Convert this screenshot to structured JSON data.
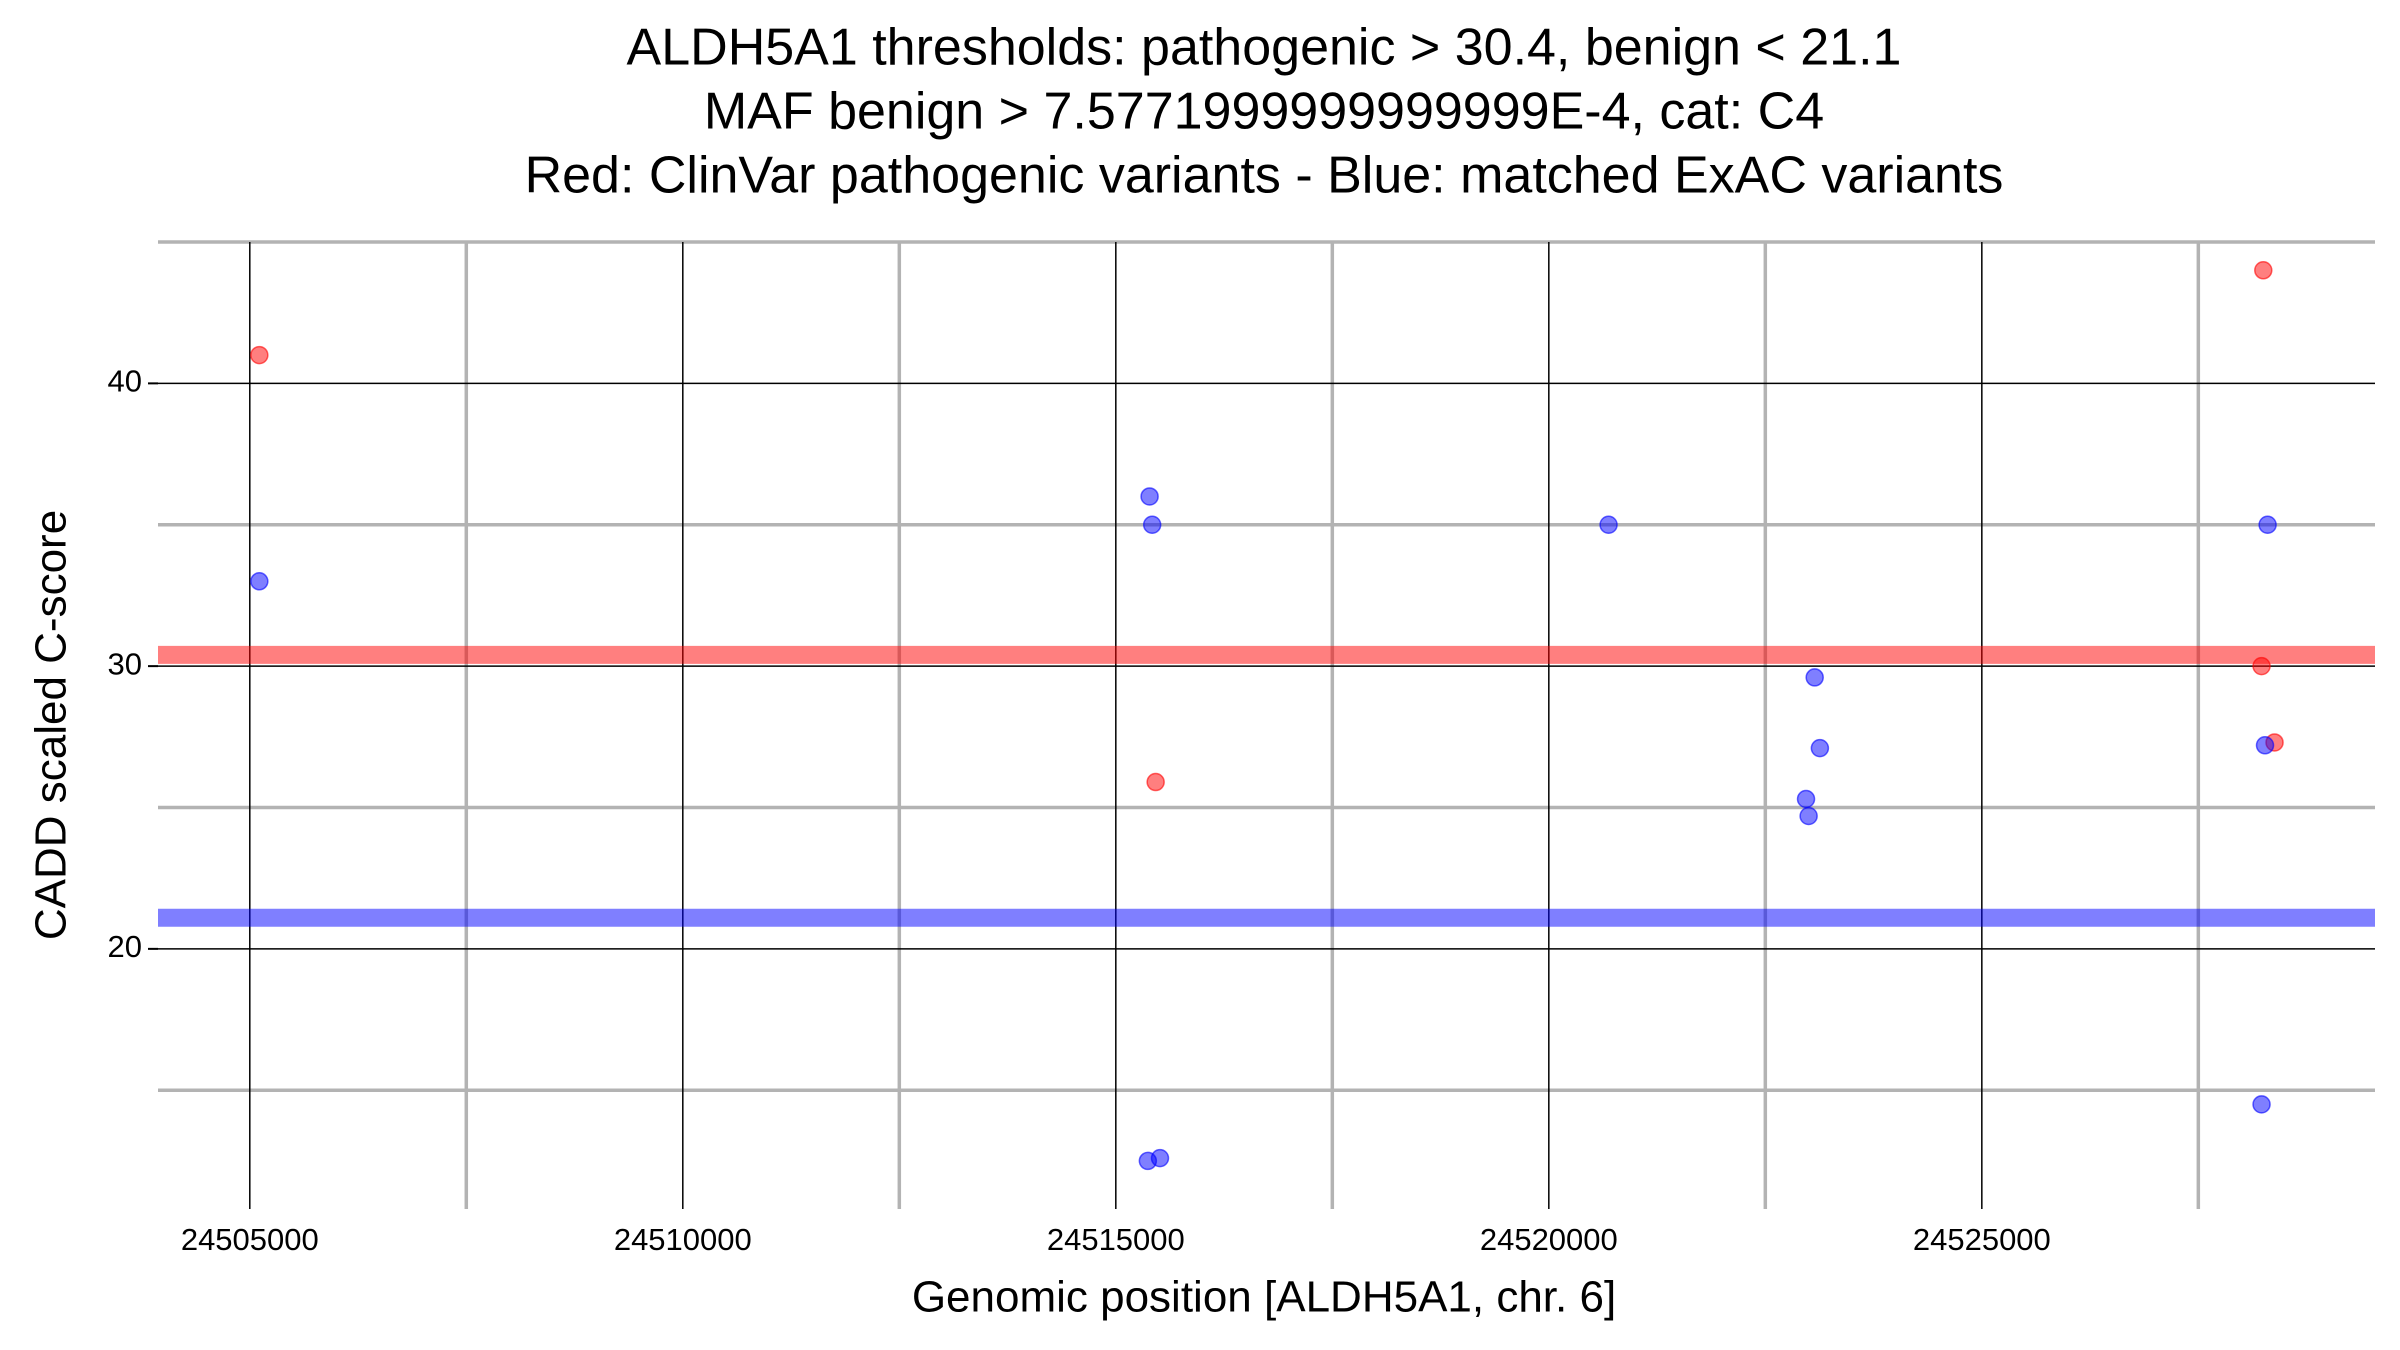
{
  "chart_data": {
    "type": "scatter",
    "title": [
      "ALDH5A1 thresholds: pathogenic > 30.4, benign < 21.1",
      "MAF benign > 7.5771999999999999E-4, cat: C4",
      "Red: ClinVar pathogenic variants - Blue: matched ExAC variants"
    ],
    "xlabel": "Genomic position [ALDH5A1, chr. 6]",
    "ylabel": "CADD scaled C-score",
    "xlim": [
      24503940,
      24529540
    ],
    "ylim": [
      10.8,
      45.0
    ],
    "xticks": [
      24505000,
      24510000,
      24515000,
      24520000,
      24525000
    ],
    "yticks": [
      20,
      30,
      40
    ],
    "minor_xticks": [
      24507500,
      24512500,
      24517500,
      24522500,
      24527500
    ],
    "minor_yticks": [
      15,
      25,
      35,
      45
    ],
    "grid": true,
    "hlines": [
      {
        "value": 30.4,
        "color": "#ff0000"
      },
      {
        "value": 21.1,
        "color": "#0000ff"
      }
    ],
    "series": [
      {
        "color": "#ff0000",
        "x": [
          24505110,
          24515460,
          24528250,
          24528230,
          24528380
        ],
        "values": [
          41.0,
          25.9,
          44.0,
          30.0,
          27.3
        ]
      },
      {
        "color": "#0000ff",
        "x": [
          24505110,
          24515390,
          24515420,
          24520690,
          24523070,
          24523130,
          24522970,
          24523000,
          24528300,
          24528270,
          24528230,
          24515370,
          24515510
        ],
        "values": [
          33.0,
          36.0,
          35.0,
          35.0,
          29.6,
          27.1,
          25.3,
          24.7,
          35.0,
          27.2,
          14.5,
          12.5,
          12.6
        ]
      }
    ]
  }
}
